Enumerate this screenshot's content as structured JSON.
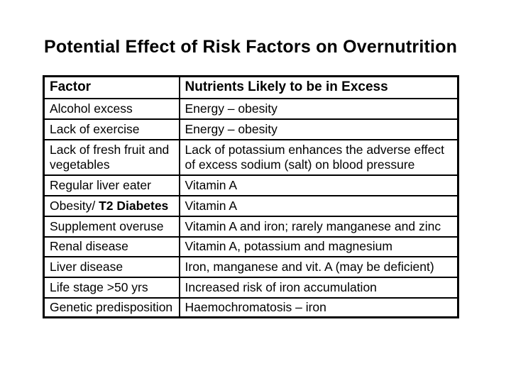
{
  "page": {
    "background_color": "#ffffff",
    "text_color": "#000000",
    "border_color": "#000000"
  },
  "title": "Potential Effect of Risk Factors on Overnutrition",
  "table": {
    "headers": {
      "factor": "Factor",
      "nutrients": "Nutrients Likely to be in Excess"
    },
    "rows": [
      {
        "factor": "Alcohol excess",
        "nutrients": "Energy – obesity"
      },
      {
        "factor": "Lack of exercise",
        "nutrients": "Energy – obesity"
      },
      {
        "factor": "Lack of fresh fruit and\nvegetables",
        "nutrients": "Lack of potassium enhances the adverse effect\nof excess sodium (salt) on blood pressure"
      },
      {
        "factor": "Regular liver eater",
        "nutrients": "Vitamin A"
      },
      {
        "factor_prefix": "Obesity/ ",
        "factor_bold": "T2 Diabetes",
        "nutrients": "Vitamin A"
      },
      {
        "factor": "Supplement overuse",
        "nutrients": "Vitamin A and iron; rarely manganese and zinc"
      },
      {
        "factor": "Renal disease",
        "nutrients": "Vitamin A, potassium and magnesium"
      },
      {
        "factor": "Liver disease",
        "nutrients": "Iron, manganese and vit. A (may be deficient)"
      },
      {
        "factor": "Life stage >50 yrs",
        "nutrients": "Increased risk of iron accumulation"
      },
      {
        "factor": "Genetic predisposition",
        "nutrients": "Haemochromatosis – iron"
      }
    ]
  }
}
